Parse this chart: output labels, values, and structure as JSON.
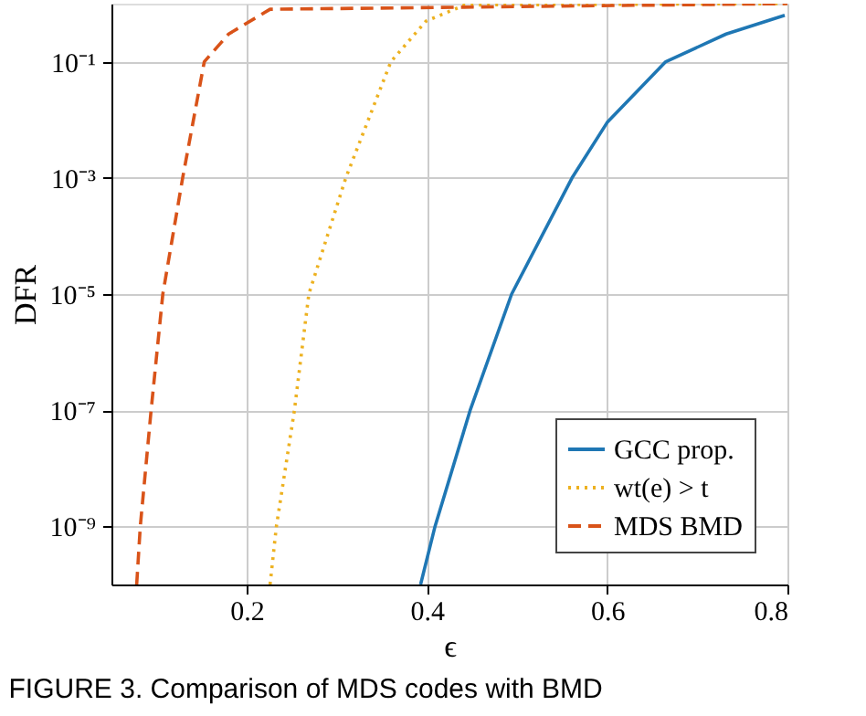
{
  "chart_data": {
    "type": "line",
    "xlabel": "ϵ",
    "ylabel": "DFR",
    "log": "y",
    "grid": true,
    "legend": "bottom right",
    "xlim": [
      0.05,
      0.8
    ],
    "ylim": [
      1e-10,
      1
    ],
    "xticks": [
      0.2,
      0.4,
      0.6,
      0.8
    ],
    "yticks": [
      {
        "value": 1e-09,
        "label": "10⁻⁹"
      },
      {
        "value": 1e-07,
        "label": "10⁻⁷"
      },
      {
        "value": 1e-05,
        "label": "10⁻⁵"
      },
      {
        "value": 0.001,
        "label": "10⁻³"
      },
      {
        "value": 0.1,
        "label": "10⁻¹"
      }
    ],
    "annotations": [
      "FIGURE 3. Comparison of MDS codes with BMD"
    ],
    "series": [
      {
        "name": "GCC prop.",
        "color": "#1f77b4",
        "line_style": "solid",
        "x": [
          0.393,
          0.409,
          0.448,
          0.494,
          0.561,
          0.6,
          0.665,
          0.732,
          0.797
        ],
        "values": [
          1e-10,
          1e-09,
          1e-07,
          1e-05,
          0.001,
          0.009,
          0.1,
          0.3,
          0.63
        ]
      },
      {
        "name": "wt(e) > t",
        "color": "#edb120",
        "line_style": "dotted",
        "x": [
          0.226,
          0.233,
          0.253,
          0.269,
          0.31,
          0.36,
          0.399,
          0.442,
          0.8
        ],
        "values": [
          1e-10,
          1e-09,
          1e-07,
          1e-05,
          0.001,
          0.1,
          0.5,
          0.95,
          1
        ]
      },
      {
        "name": "MDS BMD",
        "color": "#d95319",
        "line_style": "dashed",
        "x": [
          0.078,
          0.082,
          0.094,
          0.107,
          0.129,
          0.153,
          0.18,
          0.226,
          0.8
        ],
        "values": [
          1e-10,
          1e-09,
          1e-07,
          1e-05,
          0.001,
          0.1,
          0.3,
          0.8,
          1
        ]
      }
    ]
  }
}
